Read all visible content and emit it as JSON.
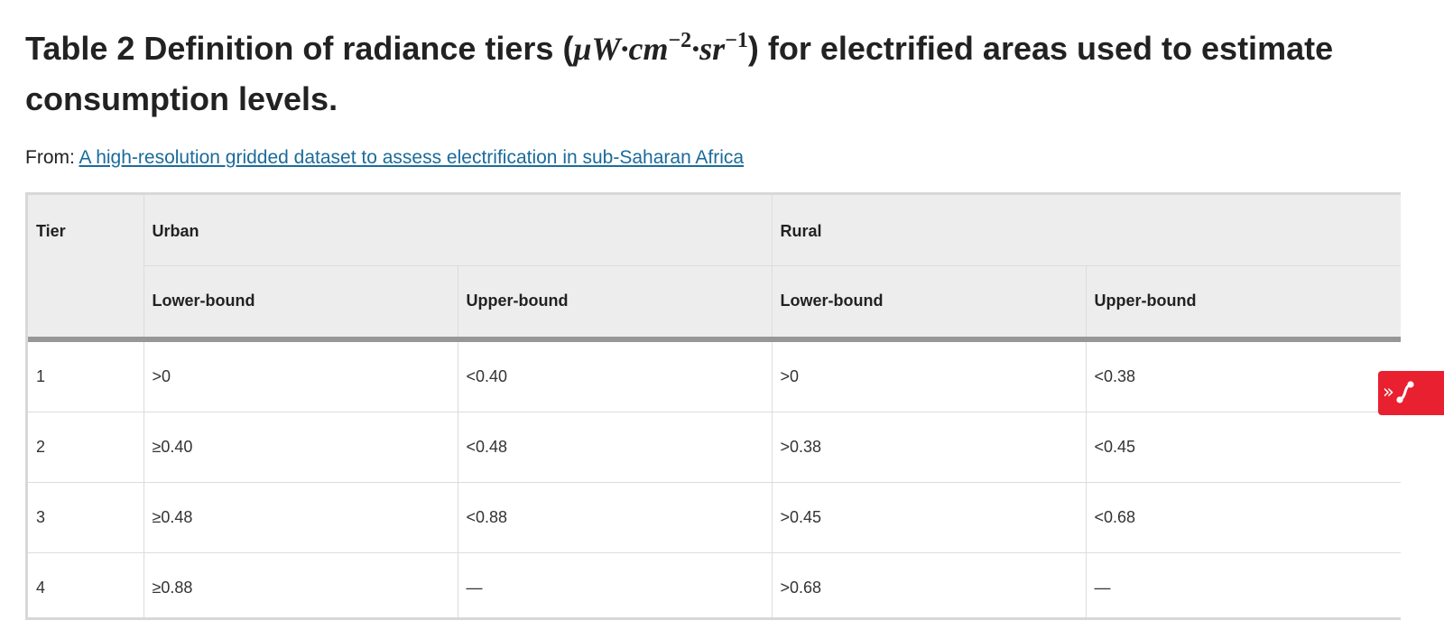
{
  "title": {
    "prefix": "Table 2 Definition of radiance tiers (",
    "math_unit": "μW·cm",
    "exp1": "−2",
    "math_sr": "·sr",
    "exp2": "−1",
    "suffix": ") for electrified areas used to estimate consumption levels."
  },
  "source": {
    "label": "From: ",
    "link_text": "A high-resolution gridded dataset to assess electrification in sub-Saharan Africa"
  },
  "table": {
    "header": {
      "tier": "Tier",
      "urban": "Urban",
      "rural": "Rural",
      "sub": [
        "Lower-bound",
        "Upper-bound",
        "Lower-bound",
        "Upper-bound"
      ]
    },
    "rows": [
      [
        "1",
        ">0",
        "<0.40",
        ">0",
        "<0.38"
      ],
      [
        "2",
        "≥0.40",
        "<0.48",
        ">0.38",
        "<0.45"
      ],
      [
        "3",
        "≥0.48",
        "<0.88",
        ">0.45",
        "<0.68"
      ],
      [
        "4",
        "≥0.88",
        "—",
        ">0.68",
        "—"
      ]
    ]
  },
  "side_tab": {
    "chevron": "»",
    "icon": "share-network-icon",
    "color": "#e8202f"
  },
  "colors": {
    "link": "#1b6b9a",
    "header_bg": "#ededed"
  }
}
